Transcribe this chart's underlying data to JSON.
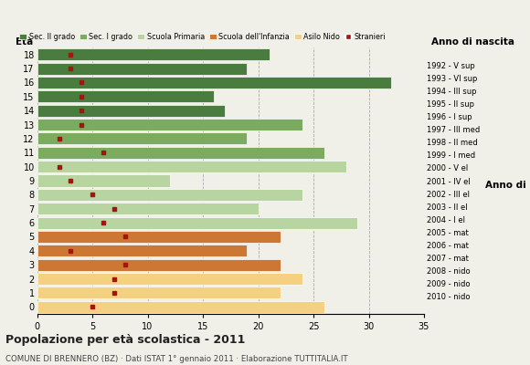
{
  "ages": [
    18,
    17,
    16,
    15,
    14,
    13,
    12,
    11,
    10,
    9,
    8,
    7,
    6,
    5,
    4,
    3,
    2,
    1,
    0
  ],
  "years": [
    "1992 - V sup",
    "1993 - VI sup",
    "1994 - III sup",
    "1995 - II sup",
    "1996 - I sup",
    "1997 - III med",
    "1998 - II med",
    "1999 - I med",
    "2000 - V el",
    "2001 - IV el",
    "2002 - III el",
    "2003 - II el",
    "2004 - I el",
    "2005 - mat",
    "2006 - mat",
    "2007 - mat",
    "2008 - nido",
    "2009 - nido",
    "2010 - nido"
  ],
  "bar_values": [
    21,
    19,
    32,
    16,
    17,
    24,
    19,
    26,
    28,
    12,
    24,
    20,
    29,
    22,
    19,
    22,
    24,
    22,
    26
  ],
  "bar_colors": [
    "#4a7c3f",
    "#4a7c3f",
    "#4a7c3f",
    "#4a7c3f",
    "#4a7c3f",
    "#7aab5e",
    "#7aab5e",
    "#7aab5e",
    "#b8d4a0",
    "#b8d4a0",
    "#b8d4a0",
    "#b8d4a0",
    "#b8d4a0",
    "#cc7733",
    "#cc7733",
    "#cc7733",
    "#f5d080",
    "#f5d080",
    "#f5d080"
  ],
  "stranieri": [
    3,
    3,
    4,
    4,
    4,
    4,
    2,
    6,
    2,
    3,
    5,
    7,
    6,
    8,
    3,
    8,
    7,
    7,
    5
  ],
  "legend_labels": [
    "Sec. II grado",
    "Sec. I grado",
    "Scuola Primaria",
    "Scuola dell'Infanzia",
    "Asilo Nido",
    "Stranieri"
  ],
  "legend_colors": [
    "#4a7c3f",
    "#7aab5e",
    "#b8d4a0",
    "#cc7733",
    "#f5d080",
    "#aa1111"
  ],
  "title": "Popolazione per età scolastica - 2011",
  "subtitle": "COMUNE DI BRENNERO (BZ) · Dati ISTAT 1° gennaio 2011 · Elaborazione TUTTITALIA.IT",
  "xlabel_eta": "Età",
  "xlabel_anno": "Anno di nascita",
  "xlim": [
    0,
    35
  ],
  "background_color": "#f0f0e8"
}
